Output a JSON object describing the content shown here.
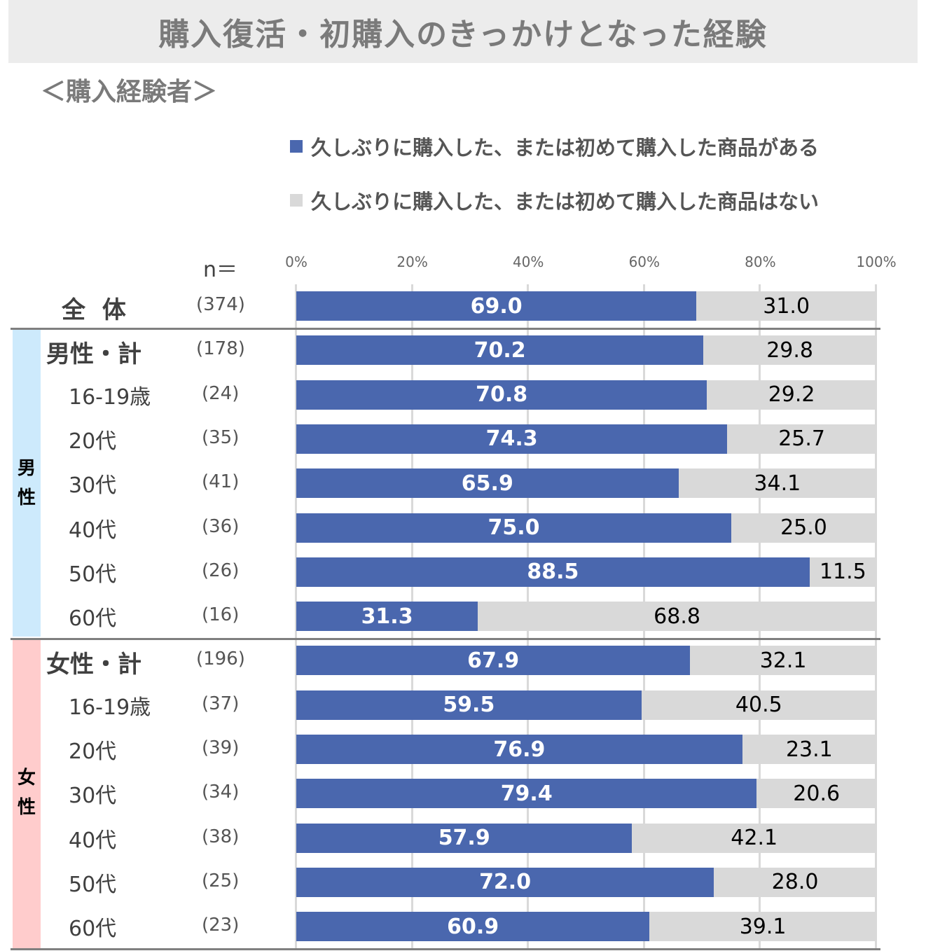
{
  "title": "購入復活・初購入のきっかけとなった経験",
  "subtitle": "＜購入経験者＞",
  "colors": {
    "yes": "#4a67ae",
    "no": "#d9d9d9",
    "male_band": "#cdeafc",
    "female_band": "#ffcccc"
  },
  "legend": [
    {
      "label": "久しぶりに購入した、または初めて購入した商品がある",
      "color": "#4a67ae"
    },
    {
      "label": "久しぶりに購入した、または初めて購入した商品はない",
      "color": "#d9d9d9"
    }
  ],
  "n_header": "n＝",
  "groups": {
    "male": "男\n性",
    "female": "女\n性"
  },
  "chart_data": {
    "type": "bar",
    "orientation": "horizontal-stacked-100",
    "title": "購入復活・初購入のきっかけとなった経験",
    "subtitle": "＜購入経験者＞",
    "xlim": [
      0,
      100
    ],
    "x_ticks": [
      "0%",
      "20%",
      "40%",
      "60%",
      "80%",
      "100%"
    ],
    "grid": true,
    "legend_position": "top-right",
    "series": [
      {
        "name": "久しぶりに購入した、または初めて購入した商品がある"
      },
      {
        "name": "久しぶりに購入した、または初めて購入した商品はない"
      }
    ],
    "rows": [
      {
        "label": "全 体",
        "n": "(374)",
        "yes": 69.0,
        "no": 31.0,
        "yes_label": "69.0",
        "no_label": "31.0",
        "style": "total"
      },
      {
        "label": "男性・計",
        "n": "(178)",
        "yes": 70.2,
        "no": 29.8,
        "yes_label": "70.2",
        "no_label": "29.8",
        "style": "subtotal",
        "group": "male"
      },
      {
        "label": "16-19歳",
        "n": "(24)",
        "yes": 70.8,
        "no": 29.2,
        "yes_label": "70.8",
        "no_label": "29.2",
        "group": "male"
      },
      {
        "label": "20代",
        "n": "(35)",
        "yes": 74.3,
        "no": 25.7,
        "yes_label": "74.3",
        "no_label": "25.7",
        "group": "male"
      },
      {
        "label": "30代",
        "n": "(41)",
        "yes": 65.9,
        "no": 34.1,
        "yes_label": "65.9",
        "no_label": "34.1",
        "group": "male"
      },
      {
        "label": "40代",
        "n": "(36)",
        "yes": 75.0,
        "no": 25.0,
        "yes_label": "75.0",
        "no_label": "25.0",
        "group": "male"
      },
      {
        "label": "50代",
        "n": "(26)",
        "yes": 88.5,
        "no": 11.5,
        "yes_label": "88.5",
        "no_label": "11.5",
        "group": "male"
      },
      {
        "label": "60代",
        "n": "(16)",
        "yes": 31.3,
        "no": 68.8,
        "yes_label": "31.3",
        "no_label": "68.8",
        "group": "male"
      },
      {
        "label": "女性・計",
        "n": "(196)",
        "yes": 67.9,
        "no": 32.1,
        "yes_label": "67.9",
        "no_label": "32.1",
        "style": "subtotal",
        "group": "female"
      },
      {
        "label": "16-19歳",
        "n": "(37)",
        "yes": 59.5,
        "no": 40.5,
        "yes_label": "59.5",
        "no_label": "40.5",
        "group": "female"
      },
      {
        "label": "20代",
        "n": "(39)",
        "yes": 76.9,
        "no": 23.1,
        "yes_label": "76.9",
        "no_label": "23.1",
        "group": "female"
      },
      {
        "label": "30代",
        "n": "(34)",
        "yes": 79.4,
        "no": 20.6,
        "yes_label": "79.4",
        "no_label": "20.6",
        "group": "female"
      },
      {
        "label": "40代",
        "n": "(38)",
        "yes": 57.9,
        "no": 42.1,
        "yes_label": "57.9",
        "no_label": "42.1",
        "group": "female"
      },
      {
        "label": "50代",
        "n": "(25)",
        "yes": 72.0,
        "no": 28.0,
        "yes_label": "72.0",
        "no_label": "28.0",
        "group": "female"
      },
      {
        "label": "60代",
        "n": "(23)",
        "yes": 60.9,
        "no": 39.1,
        "yes_label": "60.9",
        "no_label": "39.1",
        "group": "female"
      }
    ]
  }
}
